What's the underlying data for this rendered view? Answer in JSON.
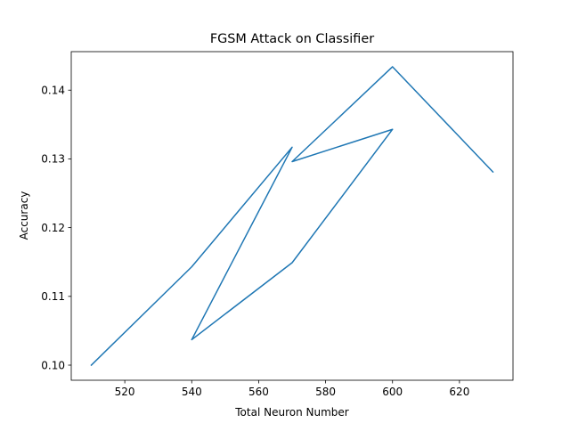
{
  "chart_data": {
    "type": "line",
    "title": "FGSM Attack on Classifier",
    "xlabel": "Total Neuron Number",
    "ylabel": "Accuracy",
    "xlim": [
      504,
      636
    ],
    "ylim": [
      0.0978,
      0.1456
    ],
    "x_ticks": [
      520,
      540,
      560,
      580,
      600,
      620
    ],
    "x_tick_labels": [
      "520",
      "540",
      "560",
      "580",
      "600",
      "620"
    ],
    "y_ticks": [
      0.1,
      0.11,
      0.12,
      0.13,
      0.14
    ],
    "y_tick_labels": [
      "0.10",
      "0.11",
      "0.12",
      "0.13",
      "0.14"
    ],
    "grid": false,
    "series": [
      {
        "color": "#1f77b4",
        "points": [
          {
            "x": 510,
            "y": 0.1
          },
          {
            "x": 540,
            "y": 0.1143
          },
          {
            "x": 570,
            "y": 0.1317
          },
          {
            "x": 540,
            "y": 0.1037
          },
          {
            "x": 570,
            "y": 0.1149
          },
          {
            "x": 600,
            "y": 0.1343
          },
          {
            "x": 570,
            "y": 0.1296
          },
          {
            "x": 600,
            "y": 0.1434
          },
          {
            "x": 630,
            "y": 0.1281
          }
        ]
      }
    ]
  }
}
